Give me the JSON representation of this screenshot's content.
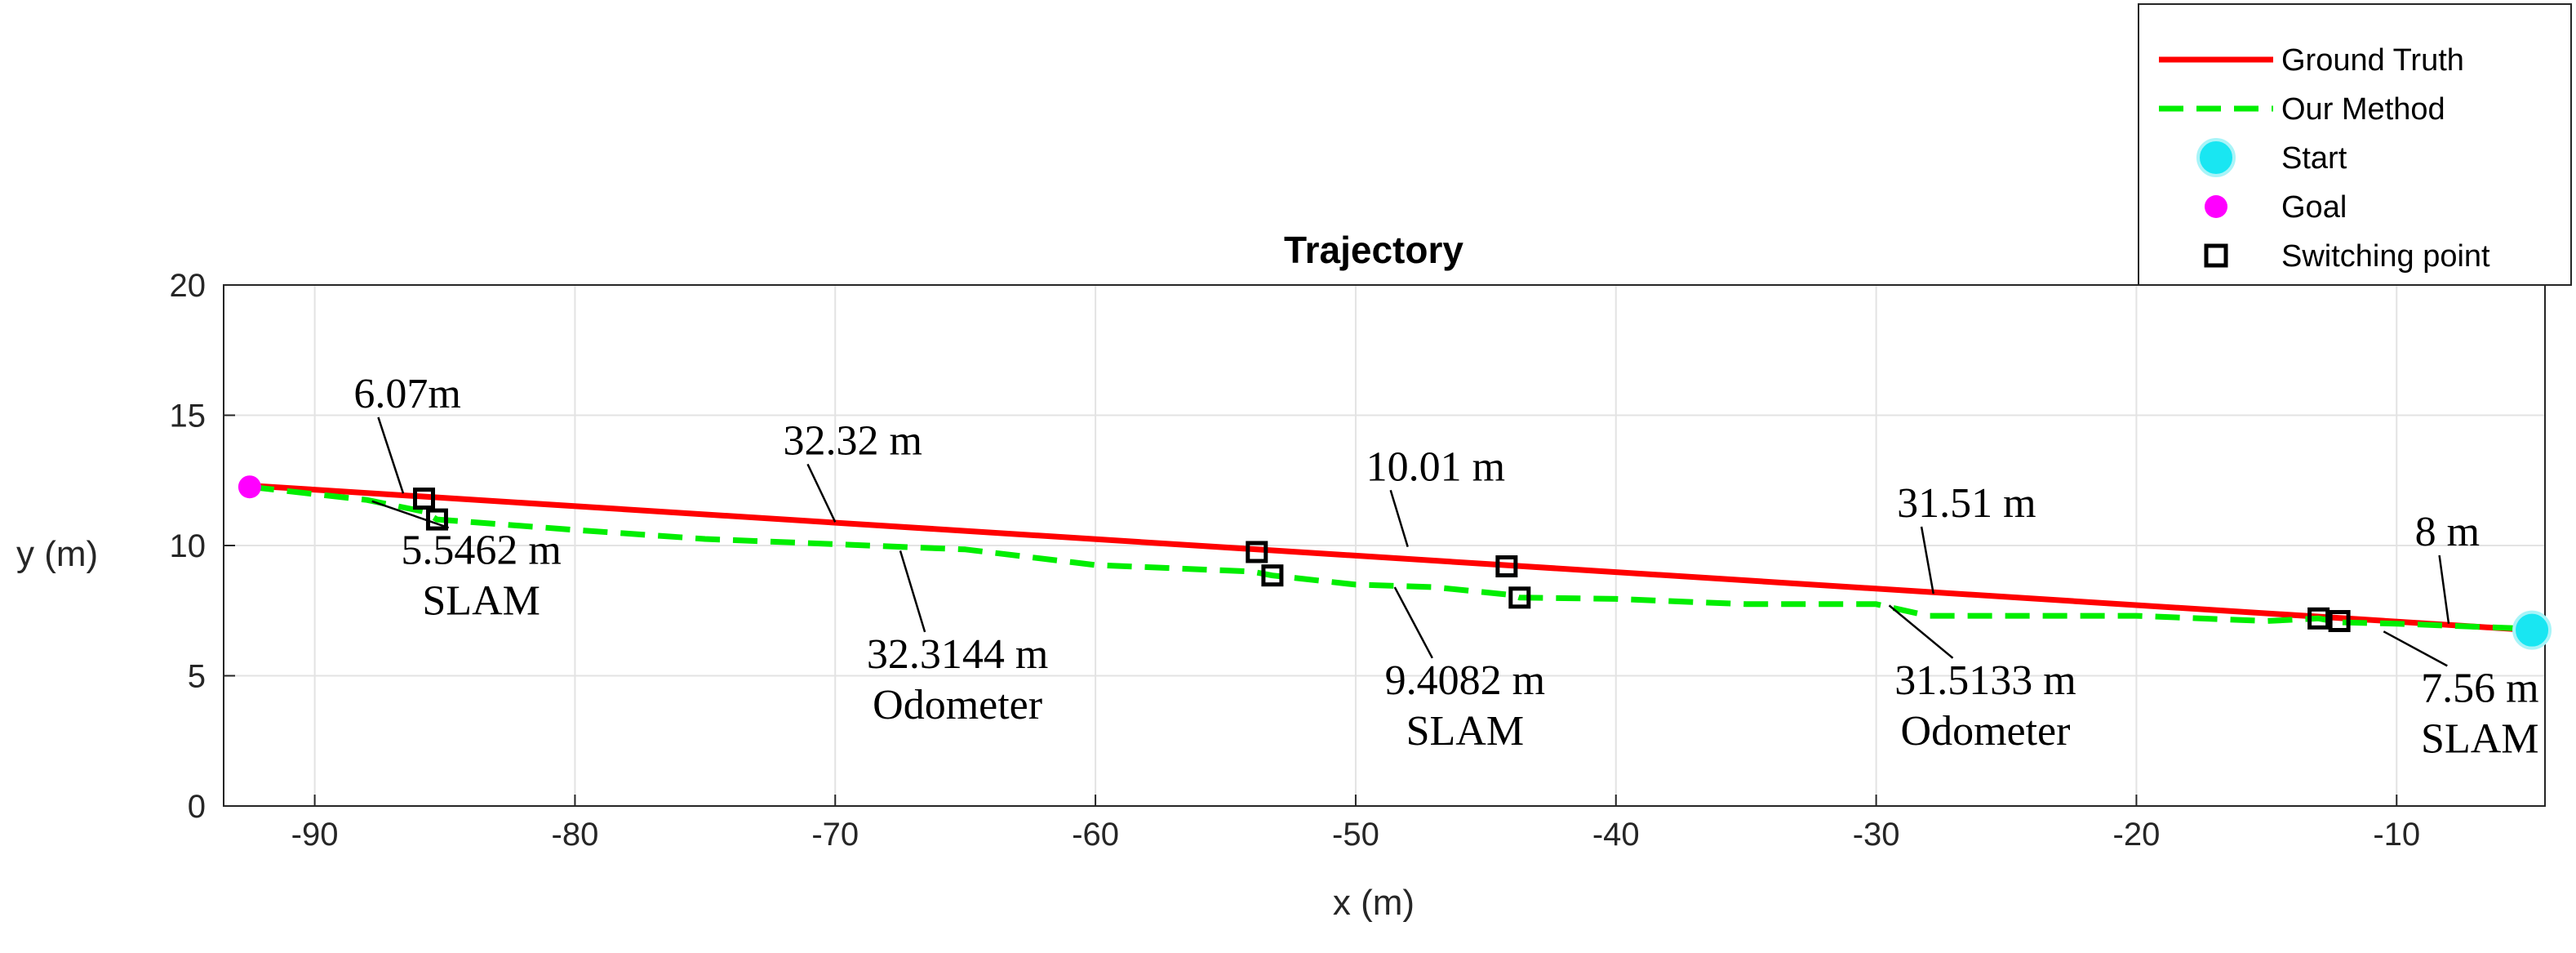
{
  "chart_data": {
    "type": "line",
    "title": "Trajectory",
    "xlabel": "x (m)",
    "ylabel": "y (m)",
    "xlim": [
      -93.5,
      -4.3
    ],
    "ylim": [
      0,
      20
    ],
    "xticks": [
      -90,
      -80,
      -70,
      -60,
      -50,
      -40,
      -30,
      -20,
      -10
    ],
    "yticks": [
      0,
      5,
      10,
      15,
      20
    ],
    "grid": true,
    "legend_position": "top-right",
    "legend": [
      {
        "label": "Ground Truth",
        "kind": "line",
        "color": "#ff0000"
      },
      {
        "label": "Our Method",
        "kind": "dashed",
        "color": "#00ee00"
      },
      {
        "label": "Start",
        "kind": "marker",
        "color": "#19e6f2"
      },
      {
        "label": "Goal",
        "kind": "marker",
        "color": "#ff00ff"
      },
      {
        "label": "Switching point",
        "kind": "square",
        "color": "#000000"
      }
    ],
    "series": [
      {
        "name": "Ground Truth",
        "color": "#ff0000",
        "style": "solid",
        "x": [
          -92.5,
          -4.8
        ],
        "y": [
          12.3,
          6.75
        ]
      },
      {
        "name": "Our Method",
        "color": "#00ee00",
        "style": "dashed",
        "x": [
          -92.5,
          -88,
          -85.8,
          -85.3,
          -80,
          -75,
          -70,
          -65,
          -60,
          -54,
          -53.2,
          -50,
          -47,
          -44,
          -43.7,
          -40,
          -35,
          -30,
          -28,
          -25,
          -20,
          -15,
          -13,
          -12.2,
          -10,
          -4.8
        ],
        "y": [
          12.25,
          11.75,
          11.3,
          11.0,
          10.6,
          10.25,
          10.05,
          9.85,
          9.25,
          9.0,
          8.85,
          8.5,
          8.4,
          8.1,
          8.0,
          7.95,
          7.75,
          7.75,
          7.3,
          7.3,
          7.3,
          7.1,
          7.2,
          7.05,
          7.0,
          6.8
        ]
      }
    ],
    "start": {
      "x": -4.8,
      "y": 6.75
    },
    "goal": {
      "x": -92.5,
      "y": 12.25
    },
    "switching_points": [
      {
        "x": -85.8,
        "y": 11.8
      },
      {
        "x": -85.3,
        "y": 11.0
      },
      {
        "x": -53.8,
        "y": 9.75
      },
      {
        "x": -53.2,
        "y": 8.85
      },
      {
        "x": -44.2,
        "y": 9.2
      },
      {
        "x": -43.7,
        "y": 8.0
      },
      {
        "x": -13.0,
        "y": 7.2
      },
      {
        "x": -12.2,
        "y": 7.1
      }
    ],
    "annotations": [
      {
        "lines": [
          "6.07m"
        ],
        "x": -88.5,
        "y": 15.3,
        "tip_x": -86.6,
        "tip_y": 12.0,
        "anchor": "start"
      },
      {
        "lines": [
          "32.32 m"
        ],
        "x": -72,
        "y": 13.5,
        "tip_x": -70.0,
        "tip_y": 10.9,
        "anchor": "start"
      },
      {
        "lines": [
          "10.01 m"
        ],
        "x": -49.6,
        "y": 12.5,
        "tip_x": -48.0,
        "tip_y": 9.95,
        "anchor": "start"
      },
      {
        "lines": [
          "31.51 m"
        ],
        "x": -29.2,
        "y": 11.1,
        "tip_x": -27.8,
        "tip_y": 8.15,
        "anchor": "start"
      },
      {
        "lines": [
          "8 m"
        ],
        "x": -9.3,
        "y": 10.0,
        "tip_x": -8.0,
        "tip_y": 7.0,
        "anchor": "start"
      },
      {
        "lines": [
          "5.5462 m",
          "SLAM"
        ],
        "x": -83.6,
        "y": 9.3,
        "tip_x": -87.8,
        "tip_y": 11.7,
        "anchor": "middle"
      },
      {
        "lines": [
          "32.3144 m",
          "Odometer"
        ],
        "x": -65.3,
        "y": 5.3,
        "tip_x": -67.5,
        "tip_y": 9.8,
        "anchor": "middle"
      },
      {
        "lines": [
          "9.4082 m",
          "SLAM"
        ],
        "x": -45.8,
        "y": 4.3,
        "tip_x": -48.5,
        "tip_y": 8.4,
        "anchor": "middle"
      },
      {
        "lines": [
          "31.5133 m",
          "Odometer"
        ],
        "x": -25.8,
        "y": 4.3,
        "tip_x": -29.5,
        "tip_y": 7.7,
        "anchor": "middle"
      },
      {
        "lines": [
          "7.56 m",
          "SLAM"
        ],
        "x": -6.8,
        "y": 4.0,
        "tip_x": -10.5,
        "tip_y": 6.7,
        "anchor": "middle"
      }
    ]
  }
}
